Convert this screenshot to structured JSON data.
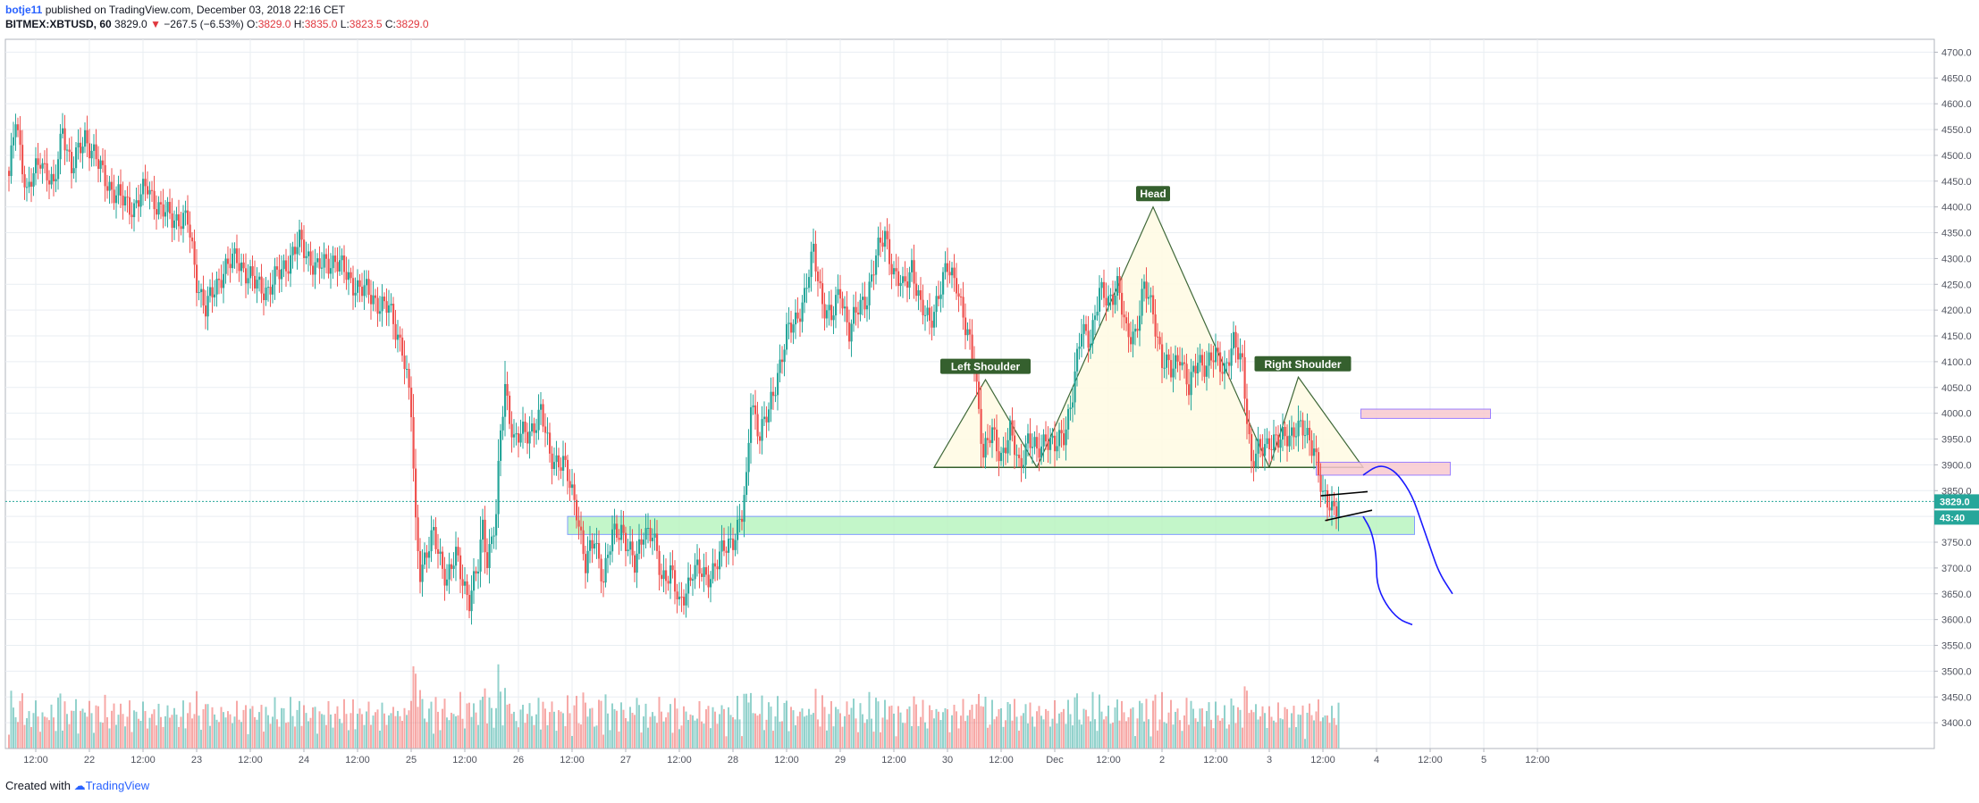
{
  "header": {
    "line1_user": "botje11",
    "line1_rest": " published on TradingView.com, December 03, 2018 22:16 CET",
    "symbol": "BITMEX:XBTUSD, 60",
    "last": " 3829.0 ",
    "arrow": "▼",
    "change": " −267.5 (−6.53%) ",
    "o_label": "O:",
    "o_val": "3829.0",
    "h_label": " H:",
    "h_val": "3835.0",
    "l_label": " L:",
    "l_val": "3823.5",
    "c_label": " C:",
    "c_val": "3829.0"
  },
  "footer": {
    "created": "Created with ",
    "brand": "TradingView"
  },
  "colors": {
    "up": "#26a69a",
    "down": "#ef5350",
    "grid": "#e9eef2",
    "support": "#b9f5c0",
    "resistance": "#f8c9d0",
    "pattern": "#fffbe6",
    "pattern_line": "#35602e",
    "forecast": "#1a1aff"
  },
  "chart_data": {
    "type": "candlestick",
    "symbol": "BITMEX:XBTUSD",
    "interval": "60",
    "ylim": [
      3350,
      4725
    ],
    "y_ticks": [
      3400,
      3450,
      3500,
      3550,
      3600,
      3650,
      3700,
      3750,
      3800,
      3850,
      3900,
      3950,
      4000,
      4050,
      4100,
      4150,
      4200,
      4250,
      4300,
      4350,
      4400,
      4450,
      4500,
      4550,
      4600,
      4650,
      4700
    ],
    "x_ticks": [
      {
        "h": 12,
        "label": "12:00"
      },
      {
        "h": 36,
        "label": "22"
      },
      {
        "h": 60,
        "label": "12:00"
      },
      {
        "h": 84,
        "label": "23"
      },
      {
        "h": 108,
        "label": "12:00"
      },
      {
        "h": 132,
        "label": "24"
      },
      {
        "h": 156,
        "label": "12:00"
      },
      {
        "h": 180,
        "label": "25"
      },
      {
        "h": 204,
        "label": "12:00"
      },
      {
        "h": 228,
        "label": "26"
      },
      {
        "h": 252,
        "label": "12:00"
      },
      {
        "h": 276,
        "label": "27"
      },
      {
        "h": 300,
        "label": "12:00"
      },
      {
        "h": 324,
        "label": "28"
      },
      {
        "h": 348,
        "label": "12:00"
      },
      {
        "h": 372,
        "label": "29"
      },
      {
        "h": 396,
        "label": "12:00"
      },
      {
        "h": 420,
        "label": "30"
      },
      {
        "h": 444,
        "label": "12:00"
      },
      {
        "h": 468,
        "label": "Dec"
      },
      {
        "h": 492,
        "label": "12:00"
      },
      {
        "h": 516,
        "label": "2"
      },
      {
        "h": 540,
        "label": "12:00"
      },
      {
        "h": 564,
        "label": "3"
      },
      {
        "h": 588,
        "label": "12:00"
      },
      {
        "h": 612,
        "label": "4"
      },
      {
        "h": 636,
        "label": "12:00"
      },
      {
        "h": 660,
        "label": "5"
      },
      {
        "h": 684,
        "label": "12:00"
      }
    ],
    "last_price": 3829.0,
    "last_price_label": "3829.0",
    "countdown_label": "43:40",
    "anchors": [
      [
        0,
        4450
      ],
      [
        3,
        4580
      ],
      [
        8,
        4420
      ],
      [
        14,
        4500
      ],
      [
        20,
        4430
      ],
      [
        24,
        4560
      ],
      [
        28,
        4470
      ],
      [
        34,
        4540
      ],
      [
        40,
        4480
      ],
      [
        48,
        4420
      ],
      [
        56,
        4400
      ],
      [
        62,
        4440
      ],
      [
        68,
        4390
      ],
      [
        80,
        4370
      ],
      [
        84,
        4260
      ],
      [
        88,
        4200
      ],
      [
        96,
        4280
      ],
      [
        102,
        4300
      ],
      [
        110,
        4250
      ],
      [
        116,
        4240
      ],
      [
        124,
        4290
      ],
      [
        130,
        4330
      ],
      [
        138,
        4280
      ],
      [
        146,
        4300
      ],
      [
        152,
        4260
      ],
      [
        158,
        4240
      ],
      [
        164,
        4220
      ],
      [
        170,
        4200
      ],
      [
        176,
        4130
      ],
      [
        180,
        4000
      ],
      [
        182,
        3780
      ],
      [
        184,
        3700
      ],
      [
        190,
        3760
      ],
      [
        196,
        3680
      ],
      [
        200,
        3720
      ],
      [
        206,
        3640
      ],
      [
        210,
        3700
      ],
      [
        212,
        3780
      ],
      [
        214,
        3720
      ],
      [
        218,
        3800
      ],
      [
        220,
        3960
      ],
      [
        222,
        4050
      ],
      [
        226,
        3950
      ],
      [
        232,
        3960
      ],
      [
        238,
        4000
      ],
      [
        242,
        3920
      ],
      [
        248,
        3900
      ],
      [
        254,
        3820
      ],
      [
        258,
        3700
      ],
      [
        262,
        3760
      ],
      [
        266,
        3680
      ],
      [
        270,
        3760
      ],
      [
        274,
        3780
      ],
      [
        280,
        3700
      ],
      [
        284,
        3780
      ],
      [
        288,
        3760
      ],
      [
        292,
        3680
      ],
      [
        296,
        3700
      ],
      [
        300,
        3620
      ],
      [
        306,
        3700
      ],
      [
        312,
        3680
      ],
      [
        318,
        3720
      ],
      [
        324,
        3760
      ],
      [
        328,
        3800
      ],
      [
        330,
        3860
      ],
      [
        332,
        4030
      ],
      [
        336,
        3960
      ],
      [
        340,
        4000
      ],
      [
        344,
        4080
      ],
      [
        348,
        4150
      ],
      [
        352,
        4180
      ],
      [
        356,
        4230
      ],
      [
        360,
        4310
      ],
      [
        364,
        4220
      ],
      [
        368,
        4180
      ],
      [
        372,
        4240
      ],
      [
        376,
        4160
      ],
      [
        380,
        4200
      ],
      [
        384,
        4230
      ],
      [
        388,
        4300
      ],
      [
        392,
        4350
      ],
      [
        396,
        4270
      ],
      [
        400,
        4240
      ],
      [
        404,
        4290
      ],
      [
        408,
        4200
      ],
      [
        412,
        4180
      ],
      [
        416,
        4230
      ],
      [
        420,
        4280
      ],
      [
        424,
        4260
      ],
      [
        428,
        4160
      ],
      [
        432,
        4100
      ],
      [
        436,
        3920
      ],
      [
        440,
        3960
      ],
      [
        444,
        3920
      ],
      [
        448,
        3960
      ],
      [
        452,
        3900
      ],
      [
        456,
        3950
      ],
      [
        460,
        3920
      ],
      [
        464,
        3960
      ],
      [
        468,
        3930
      ],
      [
        472,
        3960
      ],
      [
        476,
        4040
      ],
      [
        480,
        4160
      ],
      [
        484,
        4150
      ],
      [
        488,
        4230
      ],
      [
        492,
        4220
      ],
      [
        496,
        4250
      ],
      [
        500,
        4150
      ],
      [
        504,
        4160
      ],
      [
        508,
        4240
      ],
      [
        512,
        4200
      ],
      [
        516,
        4100
      ],
      [
        520,
        4080
      ],
      [
        524,
        4120
      ],
      [
        528,
        4040
      ],
      [
        532,
        4110
      ],
      [
        536,
        4090
      ],
      [
        540,
        4110
      ],
      [
        544,
        4090
      ],
      [
        548,
        4130
      ],
      [
        552,
        4100
      ],
      [
        556,
        3900
      ],
      [
        560,
        3930
      ],
      [
        564,
        3950
      ],
      [
        568,
        3940
      ],
      [
        572,
        3960
      ],
      [
        576,
        3970
      ],
      [
        580,
        3960
      ],
      [
        584,
        3940
      ],
      [
        588,
        3830
      ],
      [
        592,
        3820
      ],
      [
        595,
        3829
      ]
    ],
    "annotations": {
      "head": "Head",
      "left_shoulder": "Left Shoulder",
      "right_shoulder": "Right Shoulder"
    },
    "pattern": {
      "neckline": [
        [
          414,
          3895
        ],
        [
          460,
          3895
        ],
        [
          564,
          3895
        ],
        [
          606,
          3895
        ]
      ],
      "left_shoulder": [
        [
          414,
          3895
        ],
        [
          437,
          4065
        ],
        [
          460,
          3895
        ]
      ],
      "head": [
        [
          460,
          3895
        ],
        [
          512,
          4400
        ],
        [
          564,
          3895
        ]
      ],
      "right_shoulder": [
        [
          564,
          3895
        ],
        [
          577,
          4070
        ],
        [
          606,
          3895
        ]
      ]
    },
    "zones": [
      {
        "kind": "support",
        "h0": 250,
        "h1": 629,
        "p0": 3765,
        "p1": 3800
      },
      {
        "kind": "resistance",
        "h0": 585,
        "h1": 645,
        "p0": 3880,
        "p1": 3905
      },
      {
        "kind": "resistance",
        "h0": 605,
        "h1": 663,
        "p0": 3990,
        "p1": 4008
      }
    ],
    "trendlines": [
      {
        "from": [
          587,
          3840
        ],
        "to": [
          608,
          3848
        ]
      },
      {
        "from": [
          589,
          3792
        ],
        "to": [
          610,
          3812
        ]
      }
    ],
    "forecast_paths": [
      [
        [
          606,
          3880
        ],
        [
          612,
          3898
        ],
        [
          617,
          3896
        ],
        [
          622,
          3880
        ],
        [
          628,
          3840
        ],
        [
          632,
          3790
        ],
        [
          636,
          3740
        ],
        [
          640,
          3690
        ],
        [
          646,
          3650
        ]
      ],
      [
        [
          606,
          3800
        ],
        [
          610,
          3770
        ],
        [
          612,
          3720
        ],
        [
          612,
          3670
        ],
        [
          616,
          3630
        ],
        [
          622,
          3600
        ],
        [
          628,
          3590
        ]
      ]
    ]
  }
}
